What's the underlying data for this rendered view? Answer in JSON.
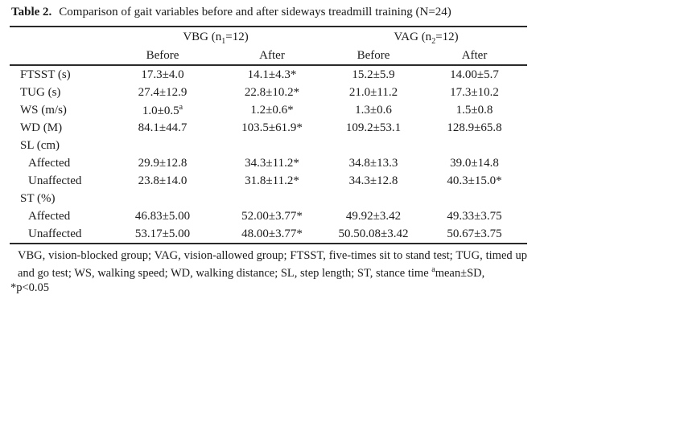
{
  "page": {
    "background": "#ffffff",
    "text_color": "#1b1b1b",
    "rule_color": "#2a2a2a"
  },
  "table": {
    "title": {
      "label": "Table 2.",
      "text": "Comparison of gait variables before and after sideways treadmill training (N=24)"
    },
    "col_groups": [
      {
        "parts": [
          "VBG (n",
          {
            "t": "sub",
            "v": "1"
          },
          "=12)"
        ]
      },
      {
        "parts": [
          "VAG (n",
          {
            "t": "sub",
            "v": "2"
          },
          "=12)"
        ]
      }
    ],
    "sub_headers": [
      "Before",
      "After",
      "Before",
      "After"
    ],
    "rows": [
      {
        "label": "FTSST (s)",
        "values": [
          "17.3±4.0",
          "14.1±4.3*",
          "15.2±5.9",
          "14.00±5.7"
        ]
      },
      {
        "label": "TUG (s)",
        "values": [
          "27.4±12.9",
          "22.8±10.2*",
          "21.0±11.2",
          "17.3±10.2"
        ]
      },
      {
        "label": "WS (m/s)",
        "values": [
          [
            "1.0±0.5",
            {
              "t": "sup",
              "v": "a"
            }
          ],
          "1.2±0.6*",
          "1.3±0.6",
          "1.5±0.8"
        ]
      },
      {
        "label": "WD (M)",
        "values": [
          "84.1±44.7",
          "103.5±61.9*",
          "109.2±53.1",
          "128.9±65.8"
        ]
      },
      {
        "label": "SL (cm)",
        "values": [
          "",
          "",
          "",
          ""
        ]
      },
      {
        "label": "Affected",
        "values": [
          "29.9±12.8",
          "34.3±11.2*",
          "34.8±13.3",
          "39.0±14.8"
        ]
      },
      {
        "label": "Unaffected",
        "values": [
          "23.8±14.0",
          "31.8±11.2*",
          "34.3±12.8",
          "40.3±15.0*"
        ]
      },
      {
        "label": "ST (%)",
        "values": [
          "",
          "",
          "",
          ""
        ]
      },
      {
        "label": "Affected",
        "values": [
          "46.83±5.00",
          "52.00±3.77*",
          "49.92±3.42",
          "49.33±3.75"
        ]
      },
      {
        "label": "Unaffected",
        "values": [
          "53.17±5.00",
          "48.00±3.77*",
          "50.50.08±3.42",
          "50.67±3.75"
        ]
      }
    ],
    "footnote": {
      "paragraph_parts": [
        "VBG, vision-blocked group; VAG, vision-allowed group; FTSST, five-times sit to stand test; TUG, timed up and go test; WS, walking speed; WD, walking distance; SL, step length; ST, stance time ",
        {
          "t": "sup",
          "v": "a"
        },
        "mean±SD,"
      ],
      "pvalue": "*p<0.05"
    }
  }
}
